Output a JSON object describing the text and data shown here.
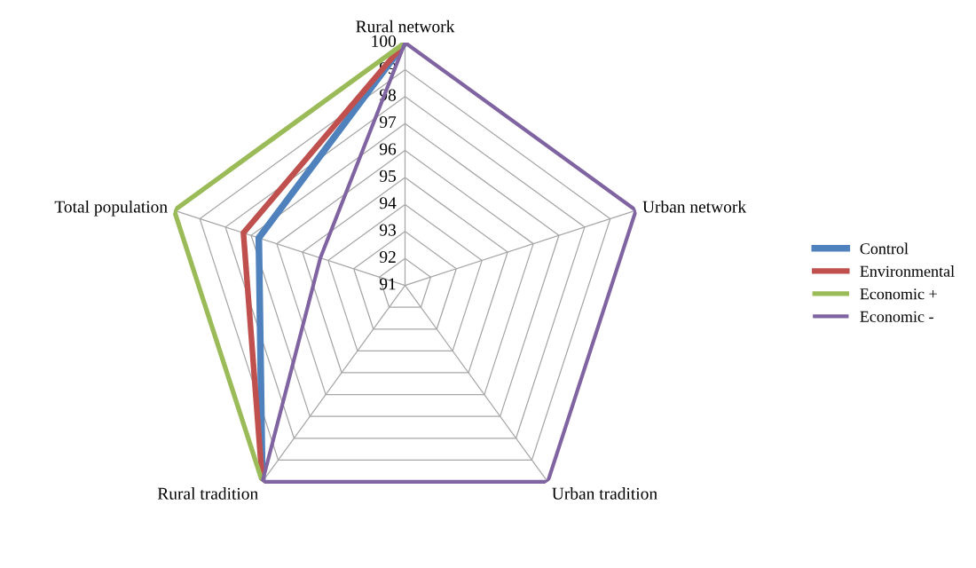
{
  "chart_data": {
    "type": "radar",
    "categories": [
      "Rural network",
      "Urban network",
      "Urban tradition",
      "Rural tradition",
      "Total population"
    ],
    "series": [
      {
        "name": "Control",
        "color": "#4f81bd",
        "values": [
          100,
          null,
          null,
          100,
          96.7
        ]
      },
      {
        "name": "Environmental",
        "color": "#c0504d",
        "values": [
          100,
          null,
          null,
          100,
          97.3
        ]
      },
      {
        "name": "Economic +",
        "color": "#9bbb59",
        "values": [
          100,
          null,
          null,
          100,
          100
        ]
      },
      {
        "name": "Economic -",
        "color": "#8064a2",
        "values": [
          100,
          100,
          100,
          100,
          94.3
        ]
      }
    ],
    "ylim": [
      91,
      100
    ],
    "yticks": [
      91,
      92,
      93,
      94,
      95,
      96,
      97,
      98,
      99,
      100
    ],
    "grid": true,
    "legend": "right",
    "marker": "none",
    "line_style": "solid"
  }
}
